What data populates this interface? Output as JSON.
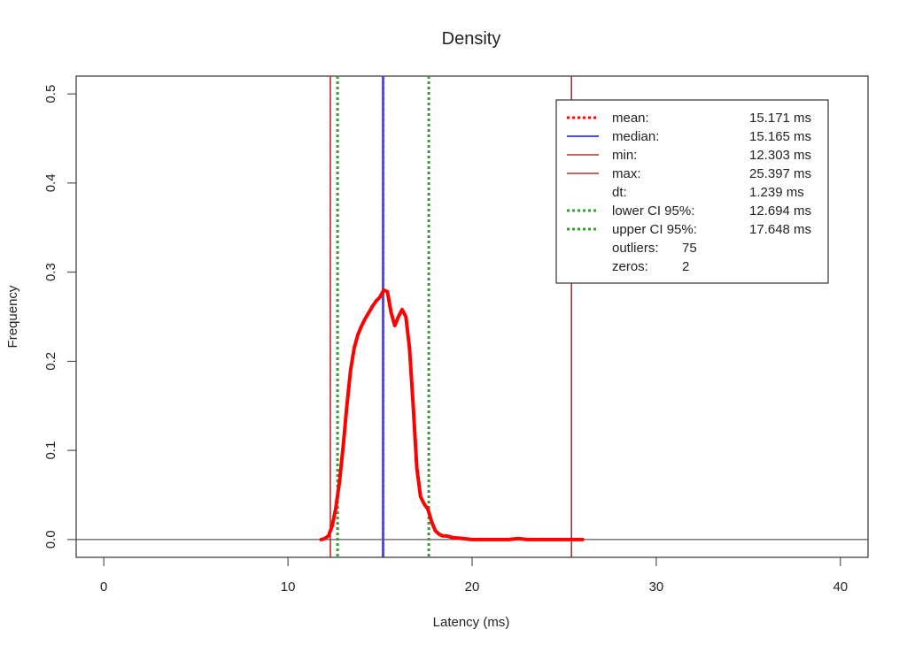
{
  "colors": {
    "density": "#ff0000",
    "median": "#4a4aff",
    "minmax": "#b03030",
    "ci": "#3a9a3a",
    "axis": "#333333",
    "background": "#ffffff"
  },
  "chart_data": {
    "type": "line",
    "title": "Density",
    "xlabel": "Latency (ms)",
    "ylabel": "Frequency",
    "xlim": [
      -1.5,
      41.5
    ],
    "ylim": [
      -0.02,
      0.52
    ],
    "xticks": [
      0,
      10,
      20,
      30,
      40
    ],
    "yticks": [
      0.0,
      0.1,
      0.2,
      0.3,
      0.4,
      0.5
    ],
    "xtick_labels": [
      "0",
      "10",
      "20",
      "30",
      "40"
    ],
    "ytick_labels": [
      "0.0",
      "0.1",
      "0.2",
      "0.3",
      "0.4",
      "0.5"
    ],
    "grid": false,
    "legend_position": "top-right",
    "baseline": 0,
    "series": [
      {
        "name": "density",
        "x": [
          11.8,
          12.0,
          12.2,
          12.4,
          12.6,
          12.8,
          13.0,
          13.2,
          13.4,
          13.6,
          13.8,
          14.0,
          14.2,
          14.4,
          14.6,
          14.8,
          15.0,
          15.2,
          15.4,
          15.6,
          15.8,
          16.0,
          16.2,
          16.4,
          16.6,
          16.8,
          17.0,
          17.2,
          17.4,
          17.6,
          17.8,
          18.0,
          18.2,
          18.4,
          18.6,
          18.8,
          19.0,
          19.5,
          20.0,
          21.0,
          22.0,
          22.5,
          23.0,
          24.0,
          25.0,
          26.0
        ],
        "y": [
          0.0,
          0.001,
          0.004,
          0.015,
          0.035,
          0.065,
          0.105,
          0.15,
          0.19,
          0.215,
          0.23,
          0.24,
          0.248,
          0.255,
          0.262,
          0.268,
          0.272,
          0.28,
          0.278,
          0.255,
          0.24,
          0.25,
          0.258,
          0.25,
          0.215,
          0.15,
          0.08,
          0.048,
          0.04,
          0.034,
          0.02,
          0.01,
          0.006,
          0.004,
          0.004,
          0.003,
          0.002,
          0.001,
          0.0,
          0.0,
          0.0,
          0.001,
          0.0,
          0.0,
          0.0,
          0.0
        ]
      }
    ],
    "vlines": [
      {
        "key": "min",
        "x": 12.303,
        "style": "solid",
        "color": "#b03030"
      },
      {
        "key": "lower-ci",
        "x": 12.694,
        "style": "dotted",
        "color": "#3a9a3a"
      },
      {
        "key": "mean",
        "x": 15.171,
        "style": "dotted",
        "color": "#ff0000"
      },
      {
        "key": "median",
        "x": 15.165,
        "style": "solid",
        "color": "#4a4aff"
      },
      {
        "key": "upper-ci",
        "x": 17.648,
        "style": "dotted",
        "color": "#3a9a3a"
      },
      {
        "key": "max",
        "x": 25.397,
        "style": "solid",
        "color": "#b03030"
      }
    ],
    "legend": [
      {
        "key": "mean",
        "label": "mean:",
        "value": "15.171 ms",
        "line": "dotted",
        "color": "#ff0000"
      },
      {
        "key": "median",
        "label": "median:",
        "value": "15.165 ms",
        "line": "solid",
        "color": "#4a4aff"
      },
      {
        "key": "min",
        "label": "min:",
        "value": "12.303 ms",
        "line": "solid-thin",
        "color": "#b03030"
      },
      {
        "key": "max",
        "label": "max:",
        "value": "25.397 ms",
        "line": "solid-thin",
        "color": "#b03030"
      },
      {
        "key": "dt",
        "label": "dt:",
        "value": "1.239 ms",
        "line": "none",
        "color": ""
      },
      {
        "key": "lower-ci",
        "label": "lower CI 95%:",
        "value": "12.694 ms",
        "line": "dotted",
        "color": "#3a9a3a"
      },
      {
        "key": "upper-ci",
        "label": "upper CI 95%:",
        "value": "17.648 ms",
        "line": "dotted",
        "color": "#3a9a3a"
      },
      {
        "key": "outliers",
        "label": "outliers:",
        "value": "75",
        "line": "none",
        "color": ""
      },
      {
        "key": "zeros",
        "label": "zeros:",
        "value": "2",
        "line": "none",
        "color": ""
      }
    ]
  }
}
